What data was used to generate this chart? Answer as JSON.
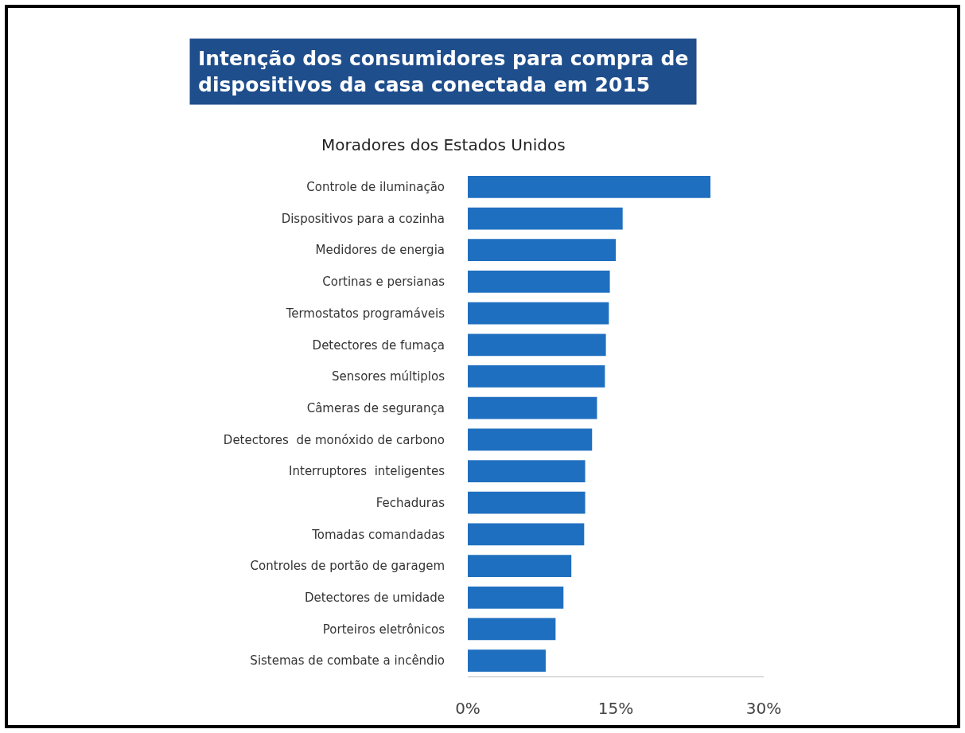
{
  "chart_data": {
    "type": "bar",
    "orientation": "horizontal",
    "title": "Intenção dos consumidores para compra de\ndispositivos da casa conectada em 2015",
    "subtitle": "Moradores dos Estados Unidos",
    "categories": [
      "Controle de iluminação",
      "Dispositivos para a cozinha",
      "Medidores de energia",
      "Cortinas e persianas",
      "Termostatos programáveis",
      "Detectores de fumaça",
      "Sensores múltiplos",
      "Câmeras de segurança",
      "Detectores  de monóxido de carbono",
      "Interruptores  inteligentes",
      "Fechaduras",
      "Tomadas comandadas",
      "Controles de portão de garagem",
      "Detectores de umidade",
      "Porteiros eletrônicos",
      "Sistemas de combate a incêndio"
    ],
    "values": [
      24.6,
      15.7,
      15.0,
      14.4,
      14.3,
      14.0,
      13.9,
      13.1,
      12.6,
      11.9,
      11.9,
      11.8,
      10.5,
      9.7,
      8.9,
      7.9
    ],
    "color": "#1f6fc0",
    "xlim": [
      0,
      30
    ],
    "xticks": [
      {
        "value": 0,
        "label": "0%"
      },
      {
        "value": 15,
        "label": "15%"
      },
      {
        "value": 30,
        "label": "30%"
      }
    ]
  }
}
